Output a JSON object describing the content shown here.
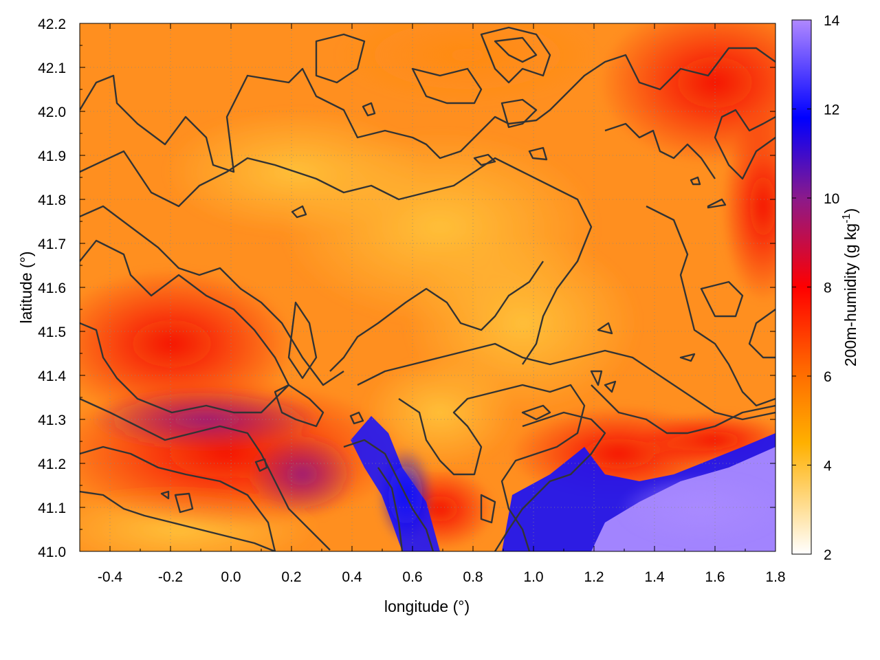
{
  "chart_data": {
    "type": "heatmap",
    "title": "",
    "xlabel": "longitude (°)",
    "ylabel": "latitude (°)",
    "xlim": [
      -0.5,
      1.8
    ],
    "ylim": [
      41.0,
      42.2
    ],
    "x_ticks": [
      "-0.4",
      "-0.2",
      "0.0",
      "0.2",
      "0.4",
      "0.6",
      "0.8",
      "1.0",
      "1.2",
      "1.4",
      "1.6",
      "1.8"
    ],
    "x_tick_values": [
      -0.4,
      -0.2,
      0.0,
      0.2,
      0.4,
      0.6,
      0.8,
      1.0,
      1.2,
      1.4,
      1.6,
      1.8
    ],
    "y_ticks": [
      "41.0",
      "41.1",
      "41.2",
      "41.3",
      "41.4",
      "41.5",
      "41.6",
      "41.7",
      "41.8",
      "41.9",
      "42.0",
      "42.1",
      "42.2"
    ],
    "y_tick_values": [
      41.0,
      41.1,
      41.2,
      41.3,
      41.4,
      41.5,
      41.6,
      41.7,
      41.8,
      41.9,
      42.0,
      42.1,
      42.2
    ],
    "grid": true,
    "colorbar": {
      "label": "200m-humidity (g kg",
      "label_sup": "-1",
      "label_close": ")",
      "range": [
        2,
        14
      ],
      "ticks": [
        "2",
        "4",
        "6",
        "8",
        "10",
        "12",
        "14"
      ],
      "tick_values": [
        2,
        4,
        6,
        8,
        10,
        12,
        14
      ],
      "palette": [
        "#ffffff",
        "#ffb000",
        "#ff6600",
        "#ff0000",
        "#8b1a8b",
        "#0000ff",
        "#b088ff"
      ],
      "palette_stops": [
        2,
        4.5,
        6.2,
        8.0,
        10.0,
        11.8,
        14.0
      ]
    },
    "field_description_points": [
      {
        "lon": -0.4,
        "lat": 42.1,
        "value": 5.9
      },
      {
        "lon": 0.6,
        "lat": 41.8,
        "value": 5.0
      },
      {
        "lon": 0.8,
        "lat": 41.6,
        "value": 4.6
      },
      {
        "lon": 1.7,
        "lat": 42.1,
        "value": 7.6
      },
      {
        "lon": -0.2,
        "lat": 41.4,
        "value": 7.5
      },
      {
        "lon": 0.0,
        "lat": 41.3,
        "value": 9.0
      },
      {
        "lon": 0.55,
        "lat": 41.15,
        "value": 11.5
      },
      {
        "lon": 1.1,
        "lat": 41.15,
        "value": 11.8
      },
      {
        "lon": 1.6,
        "lat": 41.1,
        "value": 13.2
      },
      {
        "lon": 0.1,
        "lat": 41.05,
        "value": 5.6
      },
      {
        "lon": 1.5,
        "lat": 41.6,
        "value": 5.8
      }
    ]
  }
}
